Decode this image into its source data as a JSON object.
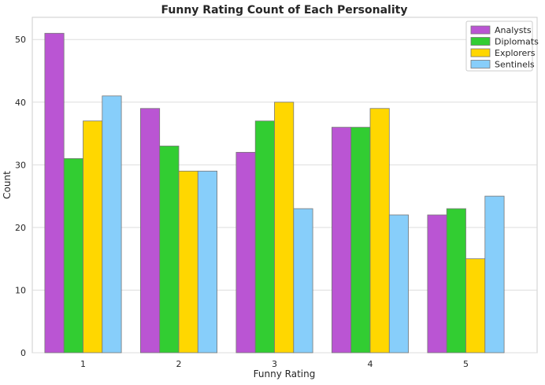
{
  "chart_data": {
    "type": "bar",
    "title": "Funny Rating Count of Each Personality",
    "xlabel": "Funny Rating",
    "ylabel": "Count",
    "categories": [
      "1",
      "2",
      "3",
      "4",
      "5"
    ],
    "series": [
      {
        "name": "Analysts",
        "color": "#BA55D3",
        "values": [
          51,
          39,
          32,
          36,
          22
        ]
      },
      {
        "name": "Diplomats",
        "color": "#32CD32",
        "values": [
          31,
          33,
          37,
          36,
          23
        ]
      },
      {
        "name": "Explorers",
        "color": "#FFD700",
        "values": [
          37,
          29,
          40,
          39,
          15
        ]
      },
      {
        "name": "Sentinels",
        "color": "#87CEFA",
        "values": [
          41,
          29,
          23,
          22,
          25
        ]
      }
    ],
    "ylim": [
      0,
      53.55
    ],
    "yticks": [
      0,
      10,
      20,
      30,
      40,
      50
    ],
    "grid": true,
    "legend_position": "top-right"
  }
}
